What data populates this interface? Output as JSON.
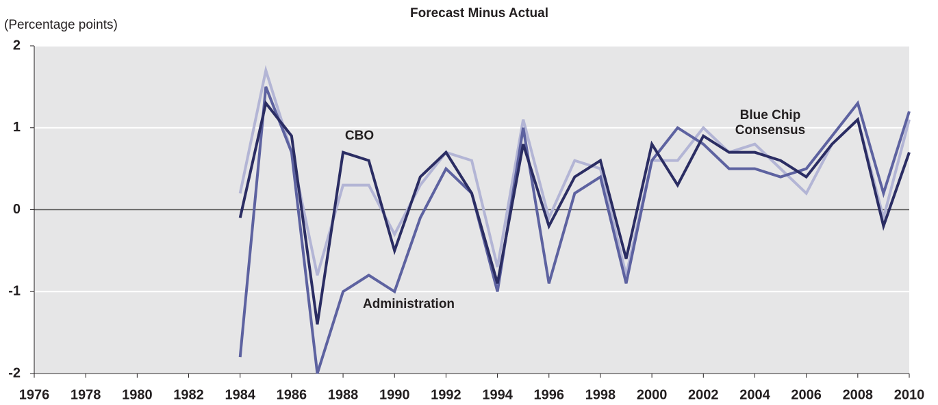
{
  "chart_data": {
    "type": "line",
    "title": "Forecast Minus Actual",
    "y_label": "(Percentage points)",
    "x": [
      1984,
      1985,
      1986,
      1987,
      1988,
      1989,
      1990,
      1991,
      1992,
      1993,
      1994,
      1995,
      1996,
      1997,
      1998,
      1999,
      2000,
      2001,
      2002,
      2003,
      2004,
      2005,
      2006,
      2007,
      2008,
      2009,
      2010
    ],
    "series": [
      {
        "name": "Blue Chip Consensus",
        "color": "#b3b5d5",
        "values": [
          0.2,
          1.7,
          0.7,
          -0.8,
          0.3,
          0.3,
          -0.3,
          0.3,
          0.7,
          0.6,
          -0.7,
          1.1,
          -0.1,
          0.6,
          0.5,
          -0.8,
          0.6,
          0.6,
          1.0,
          0.7,
          0.8,
          0.5,
          0.2,
          0.8,
          1.1,
          -0.1,
          1.1
        ]
      },
      {
        "name": "Administration",
        "color": "#5d62a0",
        "values": [
          -1.8,
          1.5,
          0.7,
          -2.0,
          -1.0,
          -0.8,
          -1.0,
          -0.1,
          0.5,
          0.2,
          -1.0,
          1.0,
          -0.9,
          0.2,
          0.4,
          -0.9,
          0.6,
          1.0,
          0.8,
          0.5,
          0.5,
          0.4,
          0.5,
          0.9,
          1.3,
          0.2,
          1.2
        ]
      },
      {
        "name": "CBO",
        "color": "#2b2d63",
        "values": [
          -0.1,
          1.3,
          0.9,
          -1.4,
          0.7,
          0.6,
          -0.5,
          0.4,
          0.7,
          0.2,
          -0.9,
          0.8,
          -0.2,
          0.4,
          0.6,
          -0.6,
          0.8,
          0.3,
          0.9,
          0.7,
          0.7,
          0.6,
          0.4,
          0.8,
          1.1,
          -0.2,
          0.7
        ]
      }
    ],
    "xlim": [
      1976,
      2010
    ],
    "xticks": [
      1976,
      1978,
      1980,
      1982,
      1984,
      1986,
      1988,
      1990,
      1992,
      1994,
      1996,
      1998,
      2000,
      2002,
      2004,
      2006,
      2008,
      2010
    ],
    "ylim": [
      -2,
      2
    ],
    "yticks": [
      -2,
      -1,
      0,
      1,
      2
    ],
    "grid": true
  }
}
